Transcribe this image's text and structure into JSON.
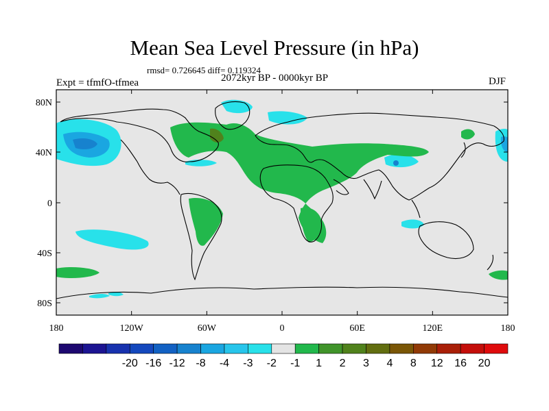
{
  "title": "Mean Sea Level Pressure (in hPa)",
  "stats": "rmsd= 0.726645 diff= 0.119324",
  "period": "2072kyr BP - 0000kyr BP",
  "experiment": "Expt = tfmfO-tfmea",
  "season": "DJF",
  "axes": {
    "x_ticks": [
      "180",
      "120W",
      "60W",
      "0",
      "60E",
      "120E",
      "180"
    ],
    "y_ticks": [
      "80N",
      "40N",
      "0",
      "40S",
      "80S"
    ]
  },
  "colorbar": {
    "colors": [
      "#1d0870",
      "#1c1492",
      "#1832ae",
      "#1448bd",
      "#1261c3",
      "#1782ce",
      "#1aa6e1",
      "#27c5eb",
      "#28e1ea",
      "#e4e4e4",
      "#22b84c",
      "#40942a",
      "#50821c",
      "#626e10",
      "#7a5606",
      "#913a06",
      "#a91f08",
      "#c40e0a",
      "#df0b0c"
    ],
    "labels": [
      "-20",
      "-16",
      "-12",
      "-8",
      "-4",
      "-3",
      "-2",
      "-1",
      "1",
      "2",
      "3",
      "4",
      "8",
      "12",
      "16",
      "20"
    ]
  },
  "map_colors": {
    "background": "#e6e6e6",
    "neg_light": "#28e1ea",
    "neg_mid": "#1aa6e1",
    "neg_dark": "#1782ce",
    "pos_light": "#22b84c",
    "pos_dark": "#50821c"
  }
}
